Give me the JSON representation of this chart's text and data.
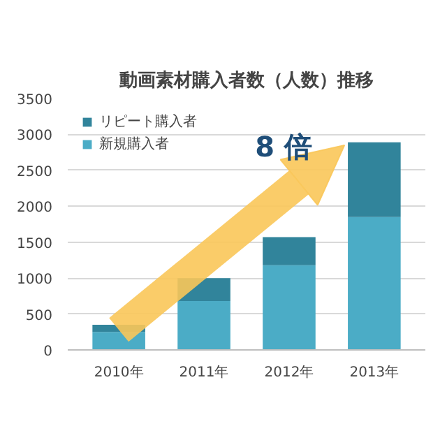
{
  "chart_data": {
    "type": "bar",
    "title": "動画素材購入者数（人数）推移",
    "stacked": true,
    "categories": [
      "2010年",
      "2011年",
      "2012年",
      "2013年"
    ],
    "series": [
      {
        "name": "新規購入者",
        "color": "#4bacc6",
        "values": [
          250,
          680,
          1180,
          1850
        ]
      },
      {
        "name": "リピート購入者",
        "color": "#31849b",
        "values": [
          100,
          320,
          390,
          1040
        ]
      }
    ],
    "ylim": [
      0,
      3500
    ],
    "yticks": [
      0,
      500,
      1000,
      1500,
      2000,
      2500,
      3000,
      3500
    ],
    "grid": "y",
    "legend": "top left",
    "annotations": [
      "8 倍"
    ]
  }
}
